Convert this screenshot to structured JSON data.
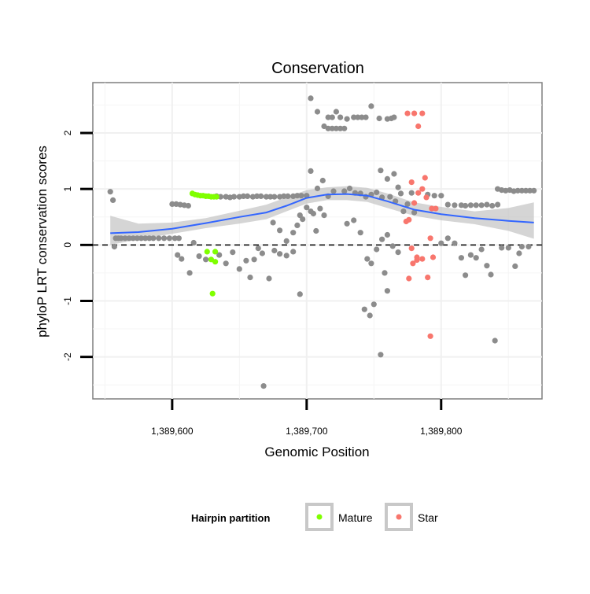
{
  "chart_data": {
    "type": "scatter",
    "title": "Conservation",
    "xlabel": "Genomic Position",
    "ylabel": "phyloP LRT conservation scores",
    "xlim": [
      1389541,
      1389875
    ],
    "ylim": [
      -2.75,
      2.9
    ],
    "x_ticks": [
      1389600,
      1389700,
      1389800
    ],
    "x_tick_labels": [
      "1,389,600",
      "1,389,700",
      "1,389,800"
    ],
    "y_ticks": [
      -2,
      -1,
      0,
      1,
      2
    ],
    "y_tick_labels": [
      "-2",
      "-1",
      "0",
      "1",
      "2"
    ],
    "hline": {
      "y": 0,
      "style": "dashed",
      "color": "#000000"
    },
    "legend": {
      "title": "Hairpin partition",
      "position": "bottom",
      "entries": [
        {
          "label": "Mature",
          "color": "#7FFF00"
        },
        {
          "label": "Star",
          "color": "#F8766D"
        }
      ]
    },
    "colors": {
      "background": "#96969600",
      "other": "#8C8C8C",
      "mature": "#7FFF00",
      "star": "#F8766D",
      "smooth": "#3366FF",
      "ribbon": "#BFBFBF",
      "grid": "#F0F0F0"
    },
    "smooth": {
      "x": [
        1389554,
        1389575,
        1389600,
        1389625,
        1389650,
        1389670,
        1389685,
        1389700,
        1389715,
        1389730,
        1389745,
        1389760,
        1389780,
        1389800,
        1389825,
        1389850,
        1389869
      ],
      "y": [
        0.21,
        0.23,
        0.29,
        0.39,
        0.5,
        0.58,
        0.7,
        0.84,
        0.9,
        0.91,
        0.88,
        0.78,
        0.63,
        0.55,
        0.48,
        0.43,
        0.4
      ],
      "lower": [
        0.0,
        0.1,
        0.2,
        0.3,
        0.38,
        0.46,
        0.6,
        0.74,
        0.8,
        0.8,
        0.77,
        0.66,
        0.52,
        0.44,
        0.37,
        0.25,
        0.11
      ],
      "upper": [
        0.52,
        0.38,
        0.4,
        0.48,
        0.61,
        0.72,
        0.85,
        0.98,
        1.03,
        1.05,
        1.02,
        0.92,
        0.76,
        0.68,
        0.6,
        0.66,
        0.76
      ]
    },
    "series": [
      {
        "name": "Other",
        "points": [
          [
            1389554,
            0.95
          ],
          [
            1389556,
            0.8
          ],
          [
            1389558,
            0.12
          ],
          [
            1389557,
            -0.03
          ],
          [
            1389560,
            0.12
          ],
          [
            1389562,
            0.12
          ],
          [
            1389565,
            0.12
          ],
          [
            1389568,
            0.12
          ],
          [
            1389571,
            0.12
          ],
          [
            1389574,
            0.12
          ],
          [
            1389577,
            0.12
          ],
          [
            1389580,
            0.12
          ],
          [
            1389583,
            0.12
          ],
          [
            1389586,
            0.12
          ],
          [
            1389590,
            0.12
          ],
          [
            1389594,
            0.12
          ],
          [
            1389598,
            0.12
          ],
          [
            1389602,
            0.12
          ],
          [
            1389605,
            0.12
          ],
          [
            1389600,
            0.73
          ],
          [
            1389603,
            0.73
          ],
          [
            1389606,
            0.72
          ],
          [
            1389609,
            0.71
          ],
          [
            1389612,
            0.7
          ],
          [
            1389604,
            -0.18
          ],
          [
            1389607,
            -0.25
          ],
          [
            1389613,
            -0.5
          ],
          [
            1389616,
            0.04
          ],
          [
            1389633,
            0.87
          ],
          [
            1389636,
            0.86
          ],
          [
            1389640,
            0.86
          ],
          [
            1389643,
            0.85
          ],
          [
            1389646,
            0.86
          ],
          [
            1389650,
            0.86
          ],
          [
            1389653,
            0.87
          ],
          [
            1389656,
            0.87
          ],
          [
            1389660,
            0.86
          ],
          [
            1389663,
            0.87
          ],
          [
            1389666,
            0.87
          ],
          [
            1389670,
            0.86
          ],
          [
            1389673,
            0.86
          ],
          [
            1389676,
            0.86
          ],
          [
            1389680,
            0.86
          ],
          [
            1389683,
            0.87
          ],
          [
            1389686,
            0.87
          ],
          [
            1389690,
            0.87
          ],
          [
            1389693,
            0.88
          ],
          [
            1389696,
            0.88
          ],
          [
            1389700,
            0.88
          ],
          [
            1389620,
            -0.2
          ],
          [
            1389625,
            -0.26
          ],
          [
            1389635,
            -0.18
          ],
          [
            1389640,
            -0.33
          ],
          [
            1389645,
            -0.13
          ],
          [
            1389650,
            -0.43
          ],
          [
            1389655,
            -0.28
          ],
          [
            1389658,
            -0.58
          ],
          [
            1389661,
            -0.26
          ],
          [
            1389664,
            -0.06
          ],
          [
            1389667,
            -0.15
          ],
          [
            1389672,
            -0.6
          ],
          [
            1389676,
            -0.1
          ],
          [
            1389680,
            -0.16
          ],
          [
            1389685,
            -0.19
          ],
          [
            1389690,
            -0.12
          ],
          [
            1389695,
            -0.88
          ],
          [
            1389668,
            -2.52
          ],
          [
            1389675,
            0.4
          ],
          [
            1389680,
            0.26
          ],
          [
            1389685,
            0.07
          ],
          [
            1389690,
            0.22
          ],
          [
            1389693,
            0.35
          ],
          [
            1389695,
            0.53
          ],
          [
            1389697,
            0.46
          ],
          [
            1389700,
            0.67
          ],
          [
            1389703,
            0.6
          ],
          [
            1389705,
            0.56
          ],
          [
            1389707,
            0.25
          ],
          [
            1389710,
            0.65
          ],
          [
            1389713,
            0.53
          ],
          [
            1389703,
            2.62
          ],
          [
            1389708,
            2.38
          ],
          [
            1389713,
            2.12
          ],
          [
            1389716,
            2.08
          ],
          [
            1389719,
            2.08
          ],
          [
            1389722,
            2.08
          ],
          [
            1389725,
            2.08
          ],
          [
            1389728,
            2.08
          ],
          [
            1389716,
            2.28
          ],
          [
            1389719,
            2.28
          ],
          [
            1389722,
            2.38
          ],
          [
            1389725,
            2.28
          ],
          [
            1389730,
            2.25
          ],
          [
            1389735,
            2.28
          ],
          [
            1389738,
            2.28
          ],
          [
            1389741,
            2.28
          ],
          [
            1389744,
            2.28
          ],
          [
            1389748,
            2.48
          ],
          [
            1389754,
            2.26
          ],
          [
            1389760,
            2.25
          ],
          [
            1389765,
            2.28
          ],
          [
            1389763,
            2.26
          ],
          [
            1389703,
            1.32
          ],
          [
            1389708,
            1.01
          ],
          [
            1389712,
            1.15
          ],
          [
            1389716,
            0.87
          ],
          [
            1389720,
            0.96
          ],
          [
            1389728,
            0.96
          ],
          [
            1389732,
            1.01
          ],
          [
            1389736,
            0.93
          ],
          [
            1389740,
            0.92
          ],
          [
            1389744,
            0.86
          ],
          [
            1389748,
            0.9
          ],
          [
            1389752,
            0.94
          ],
          [
            1389756,
            0.85
          ],
          [
            1389762,
            0.86
          ],
          [
            1389766,
            0.78
          ],
          [
            1389770,
            0.92
          ],
          [
            1389730,
            0.38
          ],
          [
            1389735,
            0.44
          ],
          [
            1389740,
            0.22
          ],
          [
            1389745,
            -0.25
          ],
          [
            1389748,
            -0.33
          ],
          [
            1389752,
            -0.08
          ],
          [
            1389756,
            0.1
          ],
          [
            1389760,
            0.18
          ],
          [
            1389764,
            -0.02
          ],
          [
            1389768,
            -0.13
          ],
          [
            1389743,
            -1.15
          ],
          [
            1389747,
            -1.26
          ],
          [
            1389750,
            -1.06
          ],
          [
            1389755,
            -1.96
          ],
          [
            1389760,
            -0.82
          ],
          [
            1389758,
            -0.5
          ],
          [
            1389755,
            1.33
          ],
          [
            1389760,
            1.18
          ],
          [
            1389765,
            1.27
          ],
          [
            1389768,
            1.03
          ],
          [
            1389772,
            0.6
          ],
          [
            1389775,
            0.73
          ],
          [
            1389778,
            0.93
          ],
          [
            1389780,
            0.58
          ],
          [
            1389790,
            0.9
          ],
          [
            1389795,
            0.88
          ],
          [
            1389800,
            0.88
          ],
          [
            1389805,
            0.72
          ],
          [
            1389810,
            0.71
          ],
          [
            1389815,
            0.71
          ],
          [
            1389818,
            0.7
          ],
          [
            1389822,
            0.71
          ],
          [
            1389826,
            0.71
          ],
          [
            1389830,
            0.71
          ],
          [
            1389834,
            0.72
          ],
          [
            1389838,
            0.7
          ],
          [
            1389842,
            0.72
          ],
          [
            1389800,
            0.03
          ],
          [
            1389805,
            0.12
          ],
          [
            1389810,
            0.03
          ],
          [
            1389815,
            -0.23
          ],
          [
            1389818,
            -0.54
          ],
          [
            1389822,
            -0.18
          ],
          [
            1389826,
            -0.23
          ],
          [
            1389830,
            -0.08
          ],
          [
            1389834,
            -0.37
          ],
          [
            1389837,
            -0.53
          ],
          [
            1389840,
            -1.71
          ],
          [
            1389842,
            1.0
          ],
          [
            1389845,
            0.98
          ],
          [
            1389848,
            0.97
          ],
          [
            1389851,
            0.98
          ],
          [
            1389854,
            0.96
          ],
          [
            1389857,
            0.97
          ],
          [
            1389860,
            0.97
          ],
          [
            1389863,
            0.97
          ],
          [
            1389866,
            0.97
          ],
          [
            1389869,
            0.97
          ],
          [
            1389845,
            -0.05
          ],
          [
            1389850,
            -0.05
          ],
          [
            1389855,
            -0.38
          ],
          [
            1389858,
            -0.15
          ],
          [
            1389860,
            -0.03
          ],
          [
            1389865,
            -0.03
          ]
        ]
      },
      {
        "name": "Mature",
        "points": [
          [
            1389615,
            0.92
          ],
          [
            1389617,
            0.9
          ],
          [
            1389619,
            0.89
          ],
          [
            1389621,
            0.88
          ],
          [
            1389623,
            0.88
          ],
          [
            1389625,
            0.87
          ],
          [
            1389627,
            0.87
          ],
          [
            1389629,
            0.86
          ],
          [
            1389631,
            0.86
          ],
          [
            1389633,
            0.86
          ],
          [
            1389626,
            -0.12
          ],
          [
            1389629,
            -0.26
          ],
          [
            1389632,
            -0.3
          ],
          [
            1389632,
            -0.12
          ],
          [
            1389630,
            -0.87
          ]
        ]
      },
      {
        "name": "Star",
        "points": [
          [
            1389775,
            2.35
          ],
          [
            1389780,
            2.35
          ],
          [
            1389786,
            2.35
          ],
          [
            1389783,
            2.12
          ],
          [
            1389783,
            0.93
          ],
          [
            1389786,
            1.0
          ],
          [
            1389788,
            1.2
          ],
          [
            1389789,
            0.85
          ],
          [
            1389778,
            1.12
          ],
          [
            1389780,
            0.75
          ],
          [
            1389776,
            0.45
          ],
          [
            1389774,
            0.42
          ],
          [
            1389778,
            -0.06
          ],
          [
            1389782,
            -0.22
          ],
          [
            1389786,
            -0.25
          ],
          [
            1389779,
            -0.33
          ],
          [
            1389792,
            0.12
          ],
          [
            1389794,
            -0.22
          ],
          [
            1389776,
            -0.6
          ],
          [
            1389790,
            -0.58
          ],
          [
            1389782,
            -0.27
          ],
          [
            1389793,
            0.65
          ],
          [
            1389796,
            0.65
          ],
          [
            1389792,
            -1.63
          ]
        ]
      }
    ]
  }
}
